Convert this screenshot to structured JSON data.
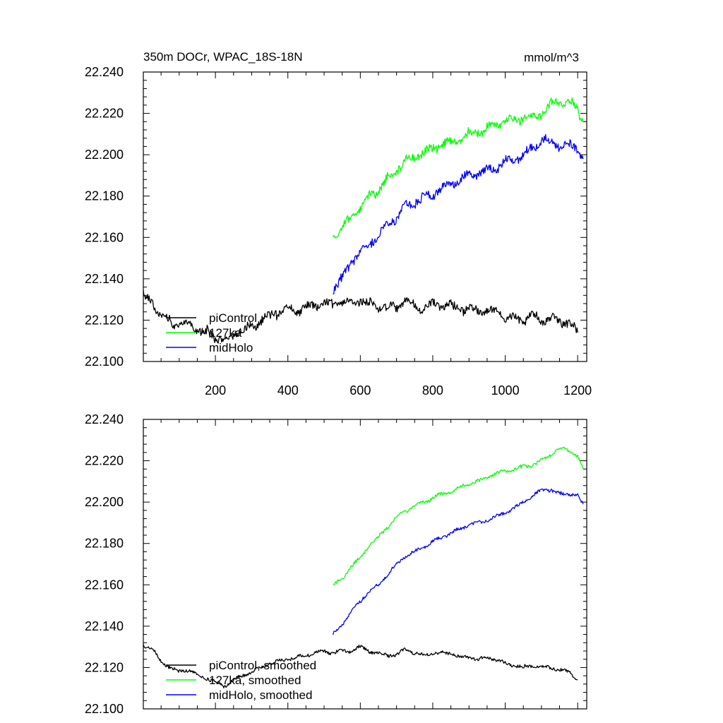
{
  "header": {
    "title": "350m DOCr, WPAC_18S-18N",
    "units": "mmol/m^3"
  },
  "colors": {
    "piControl": "#000000",
    "lig127ka": "#00ff00",
    "midHolo": "#0000ff"
  },
  "chart_data": [
    {
      "type": "line",
      "title": "350m DOCr, WPAC_18S-18N",
      "units": "mmol/m^3",
      "xlim": [
        1,
        1225
      ],
      "ylim": [
        22.1,
        22.24
      ],
      "xticks": [
        200,
        400,
        600,
        800,
        1000,
        1200
      ],
      "xtick_labels": [
        "200",
        "400",
        "600",
        "800",
        "1000",
        "1200"
      ],
      "yticks": [
        22.1,
        22.12,
        22.14,
        22.16,
        22.18,
        22.2,
        22.22,
        22.24
      ],
      "ytick_labels": [
        "22.100",
        "22.120",
        "22.140",
        "22.160",
        "22.180",
        "22.200",
        "22.220",
        "22.240"
      ],
      "grid": false,
      "legend_position": "bottom-left",
      "series": [
        {
          "name": "piControl",
          "key": "piControl",
          "x": [
            1,
            25,
            50,
            75,
            100,
            125,
            150,
            175,
            200,
            225,
            250,
            275,
            300,
            325,
            350,
            375,
            400,
            425,
            450,
            475,
            500,
            525,
            550,
            575,
            600,
            625,
            650,
            675,
            700,
            725,
            750,
            775,
            800,
            825,
            850,
            875,
            900,
            925,
            950,
            975,
            1000,
            1025,
            1050,
            1075,
            1100,
            1125,
            1150,
            1175,
            1200
          ],
          "values": [
            22.131,
            22.13,
            22.122,
            22.12,
            22.117,
            22.119,
            22.115,
            22.114,
            22.112,
            22.11,
            22.113,
            22.115,
            22.117,
            22.12,
            22.122,
            22.124,
            22.125,
            22.125,
            22.126,
            22.127,
            22.128,
            22.127,
            22.129,
            22.128,
            22.13,
            22.128,
            22.127,
            22.126,
            22.126,
            22.13,
            22.127,
            22.126,
            22.127,
            22.128,
            22.127,
            22.125,
            22.126,
            22.124,
            22.125,
            22.124,
            22.122,
            22.121,
            22.12,
            22.122,
            22.12,
            22.121,
            22.119,
            22.119,
            22.114
          ]
        },
        {
          "name": "127ka",
          "key": "lig127ka",
          "x": [
            525,
            550,
            575,
            600,
            625,
            650,
            675,
            700,
            725,
            750,
            775,
            800,
            825,
            850,
            875,
            900,
            925,
            950,
            975,
            1000,
            1025,
            1050,
            1075,
            1100,
            1125,
            1150,
            1175,
            1200,
            1215
          ],
          "values": [
            22.161,
            22.164,
            22.17,
            22.174,
            22.18,
            22.183,
            22.188,
            22.193,
            22.197,
            22.199,
            22.201,
            22.203,
            22.205,
            22.206,
            22.208,
            22.21,
            22.211,
            22.213,
            22.215,
            22.216,
            22.217,
            22.218,
            22.218,
            22.22,
            22.224,
            22.226,
            22.226,
            22.222,
            22.216
          ]
        },
        {
          "name": "midHolo",
          "key": "midHolo",
          "x": [
            525,
            550,
            575,
            600,
            625,
            650,
            675,
            700,
            725,
            750,
            775,
            800,
            825,
            850,
            875,
            900,
            925,
            950,
            975,
            1000,
            1025,
            1050,
            1075,
            1100,
            1125,
            1150,
            1175,
            1200,
            1215
          ],
          "values": [
            22.135,
            22.14,
            22.148,
            22.153,
            22.157,
            22.161,
            22.166,
            22.17,
            22.175,
            22.177,
            22.179,
            22.181,
            22.184,
            22.186,
            22.188,
            22.19,
            22.191,
            22.192,
            22.194,
            22.196,
            22.198,
            22.2,
            22.203,
            22.207,
            22.206,
            22.204,
            22.205,
            22.203,
            22.198
          ]
        }
      ]
    },
    {
      "type": "line",
      "xlim": [
        1,
        1225
      ],
      "ylim": [
        22.1,
        22.24
      ],
      "xticks": [
        200,
        400,
        600,
        800,
        1000,
        1200
      ],
      "yticks": [
        22.1,
        22.12,
        22.14,
        22.16,
        22.18,
        22.2,
        22.22,
        22.24
      ],
      "ytick_labels": [
        "22.100",
        "22.120",
        "22.140",
        "22.160",
        "22.180",
        "22.200",
        "22.220",
        "22.240"
      ],
      "grid": false,
      "legend_position": "bottom-left",
      "series": [
        {
          "name": "piControl, smoothed",
          "key": "piControl",
          "x": [
            1,
            25,
            50,
            75,
            100,
            125,
            150,
            175,
            200,
            225,
            250,
            275,
            300,
            325,
            350,
            375,
            400,
            425,
            450,
            475,
            500,
            525,
            550,
            575,
            600,
            625,
            650,
            675,
            700,
            725,
            750,
            775,
            800,
            825,
            850,
            875,
            900,
            925,
            950,
            975,
            1000,
            1025,
            1050,
            1075,
            1100,
            1125,
            1150,
            1175,
            1200
          ],
          "values": [
            22.131,
            22.129,
            22.123,
            22.12,
            22.118,
            22.119,
            22.116,
            22.115,
            22.113,
            22.111,
            22.114,
            22.116,
            22.118,
            22.12,
            22.122,
            22.123,
            22.124,
            22.125,
            22.126,
            22.127,
            22.128,
            22.127,
            22.128,
            22.128,
            22.13,
            22.128,
            22.127,
            22.126,
            22.126,
            22.129,
            22.127,
            22.126,
            22.127,
            22.127,
            22.127,
            22.125,
            22.125,
            22.124,
            22.125,
            22.124,
            22.122,
            22.121,
            22.12,
            22.121,
            22.12,
            22.12,
            22.119,
            22.118,
            22.114
          ]
        },
        {
          "name": "127ka, smoothed",
          "key": "lig127ka",
          "x": [
            525,
            550,
            575,
            600,
            625,
            650,
            675,
            700,
            725,
            750,
            775,
            800,
            825,
            850,
            875,
            900,
            925,
            950,
            975,
            1000,
            1025,
            1050,
            1075,
            1100,
            1125,
            1150,
            1175,
            1200,
            1215
          ],
          "values": [
            22.16,
            22.163,
            22.169,
            22.173,
            22.179,
            22.183,
            22.188,
            22.193,
            22.196,
            22.198,
            22.2,
            22.202,
            22.204,
            22.205,
            22.207,
            22.209,
            22.21,
            22.212,
            22.214,
            22.215,
            22.216,
            22.217,
            22.218,
            22.22,
            22.223,
            22.226,
            22.225,
            22.222,
            22.216
          ]
        },
        {
          "name": "midHolo, smoothed",
          "key": "midHolo",
          "x": [
            525,
            550,
            575,
            600,
            625,
            650,
            675,
            700,
            725,
            750,
            775,
            800,
            825,
            850,
            875,
            900,
            925,
            950,
            975,
            1000,
            1025,
            1050,
            1075,
            1100,
            1125,
            1150,
            1175,
            1200,
            1215
          ],
          "values": [
            22.136,
            22.141,
            22.147,
            22.152,
            22.157,
            22.16,
            22.165,
            22.17,
            22.174,
            22.176,
            22.178,
            22.181,
            22.183,
            22.185,
            22.187,
            22.189,
            22.19,
            22.191,
            22.193,
            22.195,
            22.197,
            22.2,
            22.203,
            22.206,
            22.206,
            22.204,
            22.204,
            22.203,
            22.199
          ]
        }
      ]
    }
  ]
}
